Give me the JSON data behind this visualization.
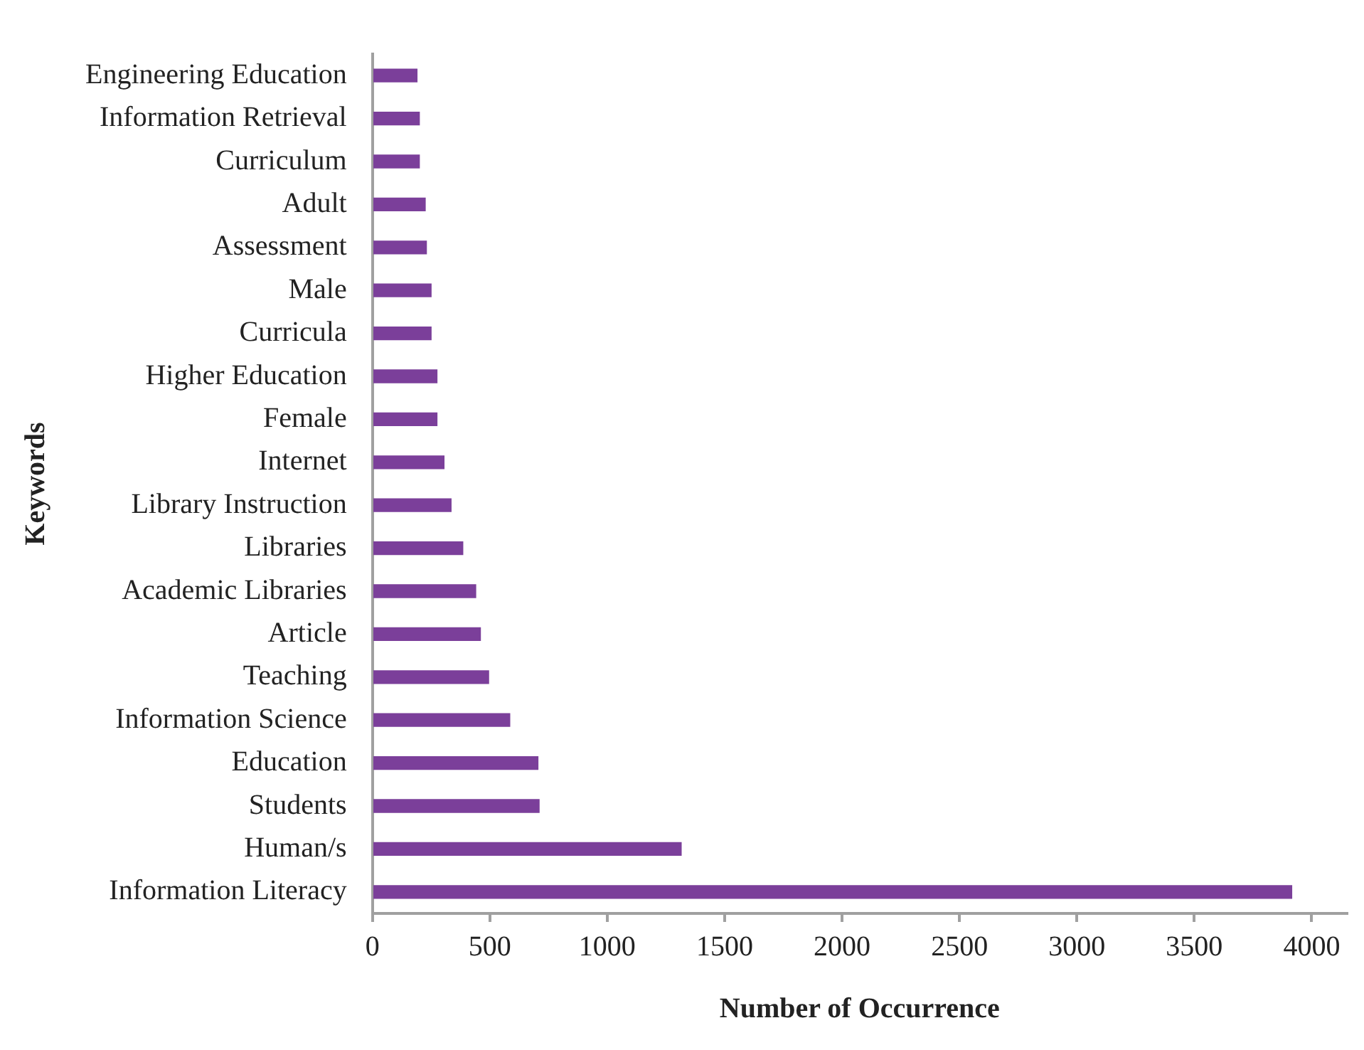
{
  "chart_data": {
    "type": "bar",
    "orientation": "horizontal",
    "xlabel": "Number of Occurrence",
    "ylabel": "Keywords",
    "categories": [
      "Engineering Education",
      "Information Retrieval",
      "Curriculum",
      "Adult",
      "Assessment",
      "Male",
      "Curricula",
      "Higher Education",
      "Female",
      "Internet",
      "Library Instruction",
      "Libraries",
      "Academic Libraries",
      "Article",
      "Teaching",
      "Information Science",
      "Education",
      "Students",
      "Human/s",
      "Information Literacy"
    ],
    "values": [
      190,
      200,
      200,
      225,
      230,
      250,
      250,
      275,
      275,
      305,
      335,
      385,
      440,
      460,
      495,
      585,
      705,
      710,
      1315,
      3915
    ],
    "color": "#7b3f9a",
    "xlim": [
      0,
      4150
    ],
    "xticks": [
      0,
      500,
      1000,
      1500,
      2000,
      2500,
      3000,
      3500,
      4000
    ],
    "grid": false,
    "legend": false
  }
}
